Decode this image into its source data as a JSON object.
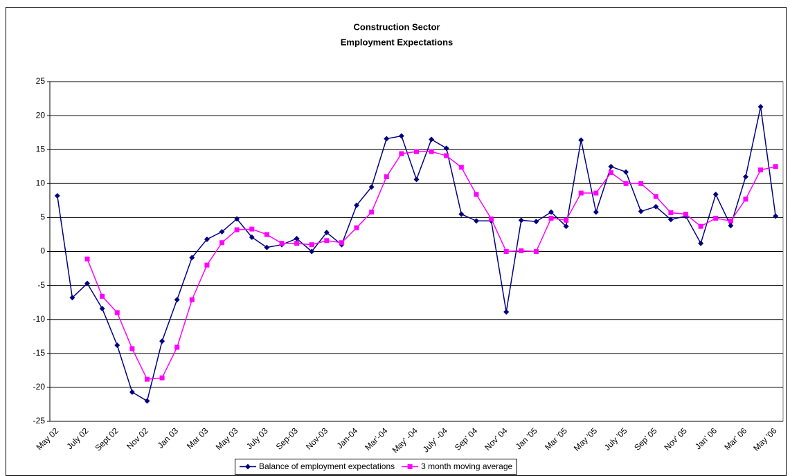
{
  "chart_data": {
    "type": "line",
    "title": [
      "Construction Sector",
      "Employment Expectations"
    ],
    "categories": [
      "May 02",
      null,
      "July 02",
      null,
      "Sept 02",
      null,
      "Nov 02",
      null,
      "Jan 03",
      null,
      "Mar 03",
      null,
      "May 03",
      null,
      "July 03",
      null,
      "Sep-03",
      null,
      "Nov-03",
      null,
      "Jan-04",
      null,
      "Mar'-04",
      null,
      "May' -04",
      null,
      "July' -04",
      null,
      "Sep' 04",
      null,
      "Nov' 04",
      null,
      "Jan '05",
      null,
      "Mar '05",
      null,
      "May '05",
      null,
      "July '05",
      null,
      "Sep' 05",
      null,
      "Nov' 05",
      null,
      "Jan' 06",
      null,
      "Mar' 06",
      null,
      "May '06"
    ],
    "series": [
      {
        "name": "Balance of employment expectations",
        "color": "#000080",
        "marker": "diamond",
        "values": [
          8.2,
          -6.8,
          -4.7,
          -8.4,
          -13.8,
          -20.7,
          -22,
          -13.2,
          -7.1,
          -0.9,
          1.8,
          2.9,
          4.8,
          2.1,
          0.6,
          1.0,
          1.9,
          0.0,
          2.8,
          1.0,
          6.8,
          9.5,
          16.6,
          17.0,
          10.6,
          16.5,
          15.2,
          5.5,
          4.5,
          4.5,
          -8.9,
          4.6,
          4.4,
          5.8,
          3.7,
          16.4,
          5.8,
          12.5,
          11.7,
          5.9,
          6.6,
          4.7,
          5.2,
          1.2,
          8.4,
          3.8,
          11.0,
          21.3,
          5.2
        ]
      },
      {
        "name": "3 month moving average",
        "color": "#FF00FF",
        "marker": "square",
        "values": [
          null,
          null,
          -1.1,
          -6.6,
          -9.0,
          -14.3,
          -18.8,
          -18.6,
          -14.1,
          -7.1,
          -2.0,
          1.3,
          3.2,
          3.3,
          2.5,
          1.2,
          1.2,
          1.0,
          1.6,
          1.3,
          3.5,
          5.8,
          11.0,
          14.4,
          14.7,
          14.7,
          14.1,
          12.4,
          8.4,
          4.8,
          0.0,
          0.1,
          0.0,
          4.9,
          4.6,
          8.6,
          8.6,
          11.6,
          10.0,
          10.0,
          8.1,
          5.7,
          5.5,
          3.7,
          4.9,
          4.5,
          7.7,
          12.0,
          12.5
        ]
      }
    ],
    "ylim": [
      -25,
      25
    ],
    "yticks": [
      -25,
      -20,
      -15,
      -10,
      -5,
      0,
      5,
      10,
      15,
      20,
      25
    ],
    "grid": true,
    "legend": "bottom"
  }
}
